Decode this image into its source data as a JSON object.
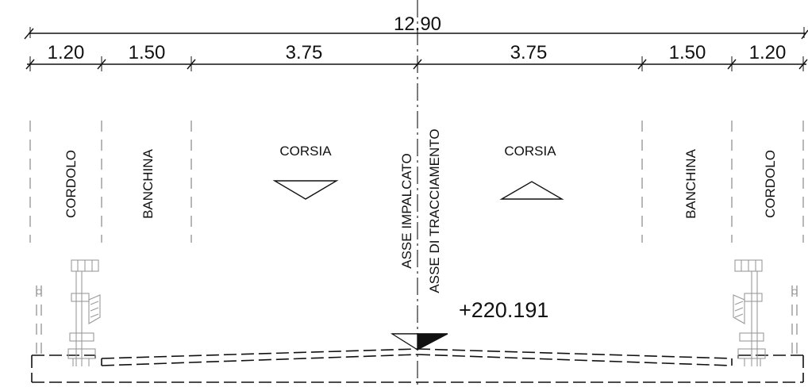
{
  "dimensions": {
    "total": "12.90",
    "segments": [
      "1.20",
      "1.50",
      "3.75",
      "3.75",
      "1.50",
      "1.20"
    ]
  },
  "zones": {
    "left_cordolo": "CORDOLO",
    "left_banchina": "BANCHINA",
    "left_corsia": "CORSIA",
    "right_corsia": "CORSIA",
    "right_banchina": "BANCHINA",
    "right_cordolo": "CORDOLO"
  },
  "axis": {
    "impalcato": "ASSE IMPALCATO",
    "tracciamento": "ASSE DI TRACCIAMENTO"
  },
  "elevation": "+220.191"
}
